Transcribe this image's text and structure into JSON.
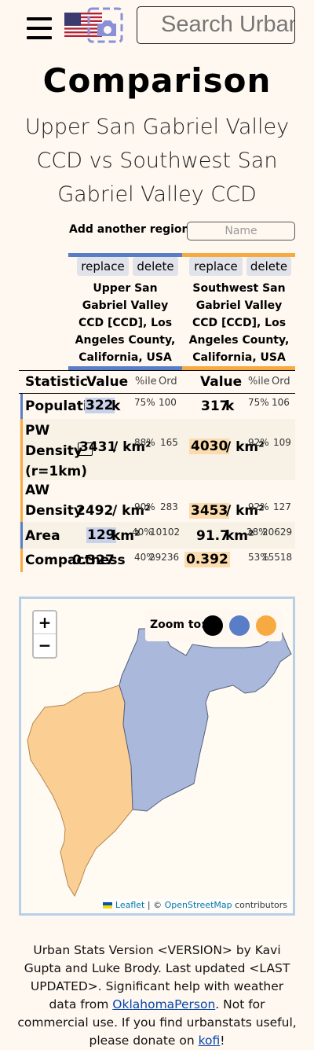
{
  "header": {
    "search_placeholder": "Search Urban"
  },
  "title": "Comparison",
  "subtitle": "Upper San Gabriel Valley CCD vs Southwest San Gabriel Valley CCD",
  "add_region": {
    "label": "Add another region:",
    "placeholder": "Name"
  },
  "regions": [
    {
      "replace_label": "replace",
      "delete_label": "delete",
      "name": "Upper San Gabriel Valley CCD [CCD], Los Angeles County, California, USA",
      "color": "#5a7dc8"
    },
    {
      "replace_label": "replace",
      "delete_label": "delete",
      "name": "Southwest San Gabriel Valley CCD [CCD], Los Angeles County, California, USA",
      "color": "#f7aa41"
    }
  ],
  "table": {
    "headers": {
      "statistic": "Statistic",
      "value": "Value",
      "percentile": "%ile",
      "ordinal": "Ord"
    },
    "rows": [
      {
        "statistic": "Population",
        "v1": "322",
        "u1": "k",
        "p1": "75%",
        "o1": "100",
        "v2": "317",
        "u2": "k",
        "p2": "75%",
        "o2": "106"
      },
      {
        "statistic_lines": [
          "PW",
          "Density",
          "(r=1km)"
        ],
        "v1": "3431",
        "u1": "/ km²",
        "p1": "88%",
        "o1": "165",
        "v2": "4030",
        "u2": "/ km²",
        "p2": "92%",
        "o2": "109"
      },
      {
        "statistic_lines": [
          "AW",
          "Density"
        ],
        "v1": "2492",
        "u1": "/ km²",
        "p1": "90%",
        "o1": "283",
        "v2": "3453",
        "u2": "/ km²",
        "p2": "92%",
        "o2": "127"
      },
      {
        "statistic": "Area",
        "v1": "129",
        "u1": "km²",
        "p1": "40%",
        "o1": "10102",
        "v2": "91.7",
        "u2": "km²",
        "p2": "28%",
        "o2": "20629"
      },
      {
        "statistic": "Compactness",
        "v1": "0.327",
        "u1": "",
        "p1": "40%",
        "o1": "29236",
        "v2": "0.392",
        "u2": "",
        "p2": "53%",
        "o2": "15518"
      }
    ]
  },
  "map": {
    "zoom_in": "+",
    "zoom_out": "−",
    "zoom_to_label": "Zoom to:",
    "zoom_colors": [
      "#000000",
      "#5a7dc8",
      "#f7aa41"
    ],
    "fill_colors": {
      "region1": "#aab8dc",
      "region2": "#fbcf94"
    },
    "attribution": {
      "leaflet": "Leaflet",
      "separator": " | © ",
      "osm": "OpenStreetMap",
      "contributors": " contributors"
    }
  },
  "footer": {
    "text1": "Urban Stats Version <VERSION> by Kavi Gupta and Luke Brody. Last updated <LAST UPDATED>. Significant help with weather data from ",
    "link1": "OklahomaPerson",
    "text2": ". Not for commercial use. If you find urbanstats useful, please donate on ",
    "link2": "kofi",
    "text3": "!"
  }
}
